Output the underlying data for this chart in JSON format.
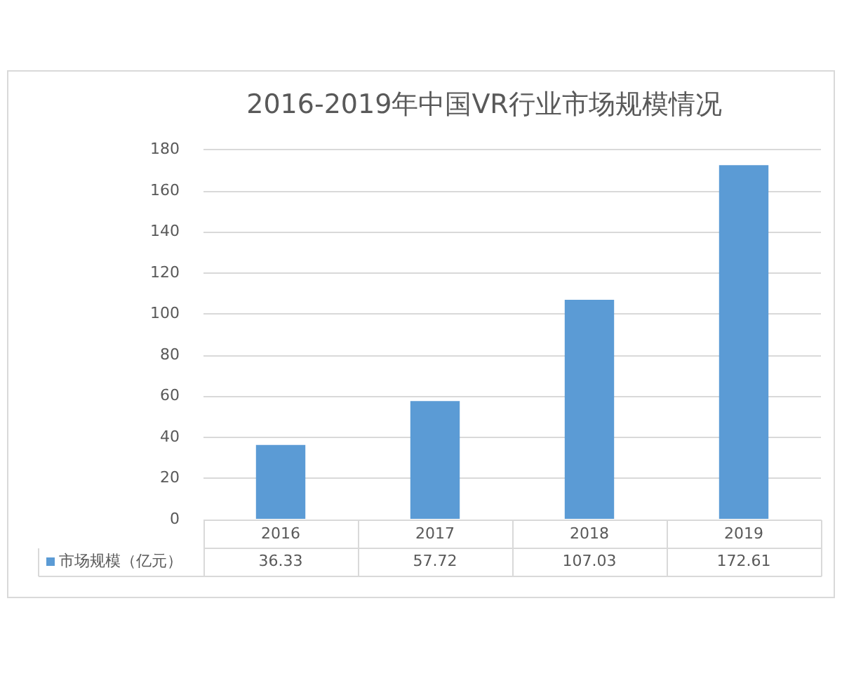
{
  "chart_data": {
    "type": "bar",
    "title": "2016-2019年中国VR行业市场规模情况",
    "categories": [
      "2016",
      "2017",
      "2018",
      "2019"
    ],
    "series": [
      {
        "name": "市场规模（亿元）",
        "color": "#5b9bd5",
        "values": [
          36.33,
          57.72,
          107.03,
          172.61
        ]
      }
    ],
    "ylim": [
      0,
      180
    ],
    "yticks": [
      0,
      20,
      40,
      60,
      80,
      100,
      120,
      140,
      160,
      180
    ],
    "grid": "y",
    "legend": "bottom left",
    "data_labels": true
  }
}
